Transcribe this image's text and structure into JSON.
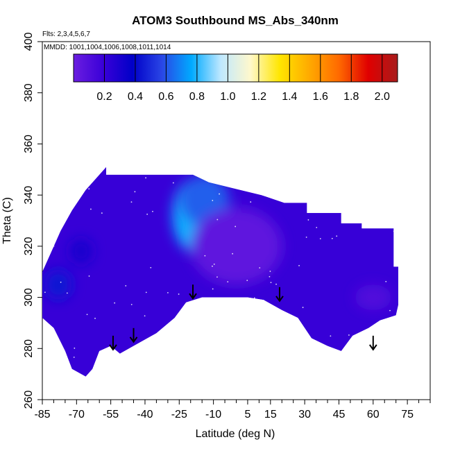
{
  "chart_data": {
    "type": "heatmap",
    "title": "ATOM3 Southbound MS_Abs_340nm",
    "notes": [
      "Flts: 2,3,4,5,6,7",
      "MMDD: 1001,1004,1006,1008,1011,1014"
    ],
    "xlabel": "Latitude (deg N)",
    "ylabel": "Theta (C)",
    "xlim": [
      -85,
      85
    ],
    "ylim": [
      260,
      400
    ],
    "xticks": [
      -85,
      -70,
      -55,
      -40,
      -25,
      -10,
      5,
      15,
      30,
      45,
      60,
      75
    ],
    "yticks": [
      260,
      280,
      300,
      320,
      340,
      360,
      380,
      400
    ],
    "grid": false,
    "colorbar": {
      "placement": "top-inside",
      "range": [
        0.0,
        2.1
      ],
      "ticks": [
        "0.2",
        "0.4",
        "0.6",
        "0.8",
        "1.0",
        "1.2",
        "1.4",
        "1.6",
        "1.8",
        "2.0"
      ],
      "colors": [
        "#6b1ee0",
        "#3a00d8",
        "#0000c8",
        "#2a46e6",
        "#00aaff",
        "#bfe8ff",
        "#fff8cc",
        "#ffe600",
        "#ffaa00",
        "#ff6a00",
        "#e00000",
        "#a81c1c"
      ]
    },
    "arrows_latitude": [
      -54,
      -45,
      -19,
      19,
      60
    ],
    "arrows_theta": [
      285,
      288,
      305,
      304,
      285
    ],
    "domain": {
      "top": [
        [
          -57,
          351
        ],
        [
          -57,
          348
        ],
        [
          -51,
          348
        ],
        [
          -19,
          348
        ],
        [
          -12,
          345
        ],
        [
          11,
          340
        ],
        [
          21,
          337
        ],
        [
          31,
          337
        ],
        [
          31,
          333
        ],
        [
          46,
          333
        ],
        [
          46,
          329
        ],
        [
          55,
          329
        ],
        [
          55,
          327
        ],
        [
          69,
          327
        ],
        [
          69,
          312
        ],
        [
          71,
          312
        ],
        [
          71,
          297
        ]
      ],
      "bottom": [
        [
          -85,
          292
        ],
        [
          -80,
          288
        ],
        [
          -75,
          279
        ],
        [
          -72,
          272
        ],
        [
          -66,
          269
        ],
        [
          -63,
          272
        ],
        [
          -60,
          279
        ],
        [
          -55,
          281
        ],
        [
          -51,
          278
        ],
        [
          -49,
          279
        ],
        [
          -45,
          281
        ],
        [
          -41,
          283
        ],
        [
          -35,
          286
        ],
        [
          -27,
          292
        ],
        [
          -22,
          298
        ],
        [
          -15,
          300
        ],
        [
          -5,
          300
        ],
        [
          5,
          300
        ],
        [
          12,
          299
        ],
        [
          20,
          295
        ],
        [
          27,
          292
        ],
        [
          33,
          284
        ],
        [
          40,
          281
        ],
        [
          46,
          279
        ],
        [
          51,
          285
        ],
        [
          58,
          288
        ],
        [
          63,
          291
        ],
        [
          70,
          293
        ],
        [
          71,
          297
        ]
      ],
      "left": [
        [
          -85,
          292
        ],
        [
          -85,
          310
        ],
        [
          -81,
          318
        ],
        [
          -77,
          326
        ],
        [
          -72,
          334
        ],
        [
          -66,
          342
        ],
        [
          -59,
          349
        ],
        [
          -57,
          351
        ]
      ]
    },
    "features": [
      {
        "center": [
          -19,
          332
        ],
        "value": 0.78,
        "radius_lat": 9,
        "radius_theta": 14
      },
      {
        "center": [
          -14,
          338
        ],
        "value": 0.62,
        "radius_lat": 11,
        "radius_theta": 10
      },
      {
        "center": [
          -78,
          305
        ],
        "value": 0.45,
        "radius_lat": 6,
        "radius_theta": 6
      },
      {
        "center": [
          -68,
          318
        ],
        "value": 0.32,
        "radius_lat": 5,
        "radius_theta": 5
      },
      {
        "center": [
          60,
          300
        ],
        "value": 0.1,
        "radius_lat": 8,
        "radius_theta": 5
      },
      {
        "center": [
          0,
          320
        ],
        "value": 0.05,
        "radius_lat": 20,
        "radius_theta": 15
      }
    ]
  }
}
